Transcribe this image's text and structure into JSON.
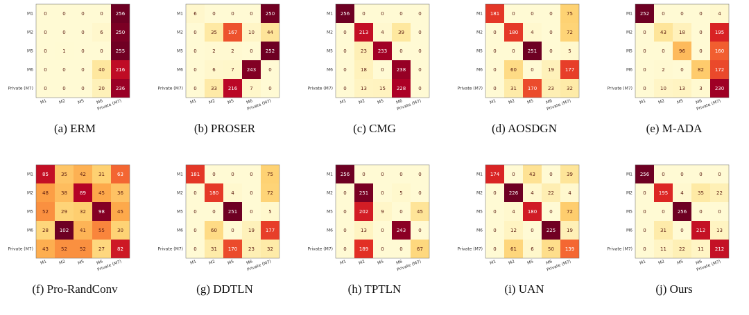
{
  "chart_data": [
    {
      "type": "heatmap",
      "caption": "(a) ERM",
      "rows": [
        "M1",
        "M2",
        "M5",
        "M6",
        "Private (M7)"
      ],
      "columns": [
        "M1",
        "M2",
        "M5",
        "M6",
        "Private (M7)"
      ],
      "values": [
        [
          0,
          0,
          0,
          0,
          256
        ],
        [
          0,
          0,
          0,
          6,
          250
        ],
        [
          0,
          1,
          0,
          0,
          255
        ],
        [
          0,
          0,
          0,
          40,
          216
        ],
        [
          0,
          0,
          0,
          20,
          236
        ]
      ]
    },
    {
      "type": "heatmap",
      "caption": "(b) PROSER",
      "rows": [
        "M1",
        "M2",
        "M5",
        "M6",
        "Private (M7)"
      ],
      "columns": [
        "M1",
        "M2",
        "M5",
        "M6",
        "Private (M7)"
      ],
      "values": [
        [
          6,
          0,
          0,
          0,
          250
        ],
        [
          0,
          35,
          167,
          10,
          44
        ],
        [
          0,
          2,
          2,
          0,
          252
        ],
        [
          0,
          6,
          7,
          243,
          0
        ],
        [
          0,
          33,
          216,
          7,
          0
        ]
      ]
    },
    {
      "type": "heatmap",
      "caption": "(c) CMG",
      "rows": [
        "M1",
        "M2",
        "M5",
        "M6",
        "Private (M7)"
      ],
      "columns": [
        "M1",
        "M2",
        "M5",
        "M6",
        "Private (M7)"
      ],
      "values": [
        [
          256,
          0,
          0,
          0,
          0
        ],
        [
          0,
          213,
          4,
          39,
          0
        ],
        [
          0,
          23,
          233,
          0,
          0
        ],
        [
          0,
          18,
          0,
          238,
          0
        ],
        [
          0,
          13,
          15,
          228,
          0
        ]
      ]
    },
    {
      "type": "heatmap",
      "caption": "(d) AOSDGN",
      "rows": [
        "M1",
        "M2",
        "M5",
        "M6",
        "Private (M7)"
      ],
      "columns": [
        "M1",
        "M2",
        "M5",
        "M6",
        "Private (M7)"
      ],
      "values": [
        [
          181,
          0,
          0,
          0,
          75
        ],
        [
          0,
          180,
          4,
          0,
          72
        ],
        [
          0,
          0,
          251,
          0,
          5
        ],
        [
          0,
          60,
          0,
          19,
          177
        ],
        [
          0,
          31,
          170,
          23,
          32
        ]
      ]
    },
    {
      "type": "heatmap",
      "caption": "(e) M-ADA",
      "rows": [
        "M1",
        "M2",
        "M5",
        "M6",
        "Private (M7)"
      ],
      "columns": [
        "M1",
        "M2",
        "M5",
        "M6",
        "Private (M7)"
      ],
      "values": [
        [
          252,
          0,
          0,
          0,
          4
        ],
        [
          0,
          43,
          18,
          0,
          195
        ],
        [
          0,
          0,
          96,
          0,
          160
        ],
        [
          0,
          2,
          0,
          82,
          172
        ],
        [
          0,
          10,
          13,
          3,
          230
        ]
      ]
    },
    {
      "type": "heatmap",
      "caption": "(f) Pro-RandConv",
      "rows": [
        "M1",
        "M2",
        "M5",
        "M6",
        "Private (M7)"
      ],
      "columns": [
        "M1",
        "M2",
        "M5",
        "M6",
        "Private (M7)"
      ],
      "values": [
        [
          85,
          35,
          42,
          31,
          63
        ],
        [
          48,
          38,
          89,
          45,
          36
        ],
        [
          52,
          29,
          32,
          98,
          45
        ],
        [
          28,
          102,
          41,
          55,
          30
        ],
        [
          43,
          52,
          52,
          27,
          82
        ]
      ]
    },
    {
      "type": "heatmap",
      "caption": "(g) DDTLN",
      "rows": [
        "M1",
        "M2",
        "M5",
        "M6",
        "Private (M7)"
      ],
      "columns": [
        "M1",
        "M2",
        "M5",
        "M6",
        "Private (M7)"
      ],
      "values": [
        [
          181,
          0,
          0,
          0,
          75
        ],
        [
          0,
          180,
          4,
          0,
          72
        ],
        [
          0,
          0,
          251,
          0,
          5
        ],
        [
          0,
          60,
          0,
          19,
          177
        ],
        [
          0,
          31,
          170,
          23,
          32
        ]
      ]
    },
    {
      "type": "heatmap",
      "caption": "(h) TPTLN",
      "rows": [
        "M1",
        "M2",
        "M5",
        "M6",
        "Private (M7)"
      ],
      "columns": [
        "M1",
        "M2",
        "M5",
        "M6",
        "Private (M7)"
      ],
      "values": [
        [
          256,
          0,
          0,
          0,
          0
        ],
        [
          0,
          251,
          0,
          5,
          0
        ],
        [
          0,
          202,
          9,
          0,
          45
        ],
        [
          0,
          13,
          0,
          243,
          0
        ],
        [
          0,
          189,
          0,
          0,
          67
        ]
      ]
    },
    {
      "type": "heatmap",
      "caption": "(i) UAN",
      "rows": [
        "M1",
        "M2",
        "M5",
        "M6",
        "Private (M7)"
      ],
      "columns": [
        "M1",
        "M2",
        "M5",
        "M6",
        "Private (M7)"
      ],
      "values": [
        [
          174,
          0,
          43,
          0,
          39
        ],
        [
          0,
          226,
          4,
          22,
          4
        ],
        [
          0,
          4,
          180,
          0,
          72
        ],
        [
          0,
          12,
          0,
          225,
          19
        ],
        [
          0,
          61,
          6,
          50,
          139
        ]
      ]
    },
    {
      "type": "heatmap",
      "caption": "(j) Ours",
      "rows": [
        "M1",
        "M2",
        "M5",
        "M6",
        "Private (M7)"
      ],
      "columns": [
        "M1",
        "M2",
        "M5",
        "M6",
        "Private (M7)"
      ],
      "values": [
        [
          256,
          0,
          0,
          0,
          0
        ],
        [
          0,
          195,
          4,
          35,
          22
        ],
        [
          0,
          0,
          256,
          0,
          0
        ],
        [
          0,
          31,
          0,
          212,
          13
        ],
        [
          0,
          11,
          22,
          11,
          212
        ]
      ]
    }
  ]
}
